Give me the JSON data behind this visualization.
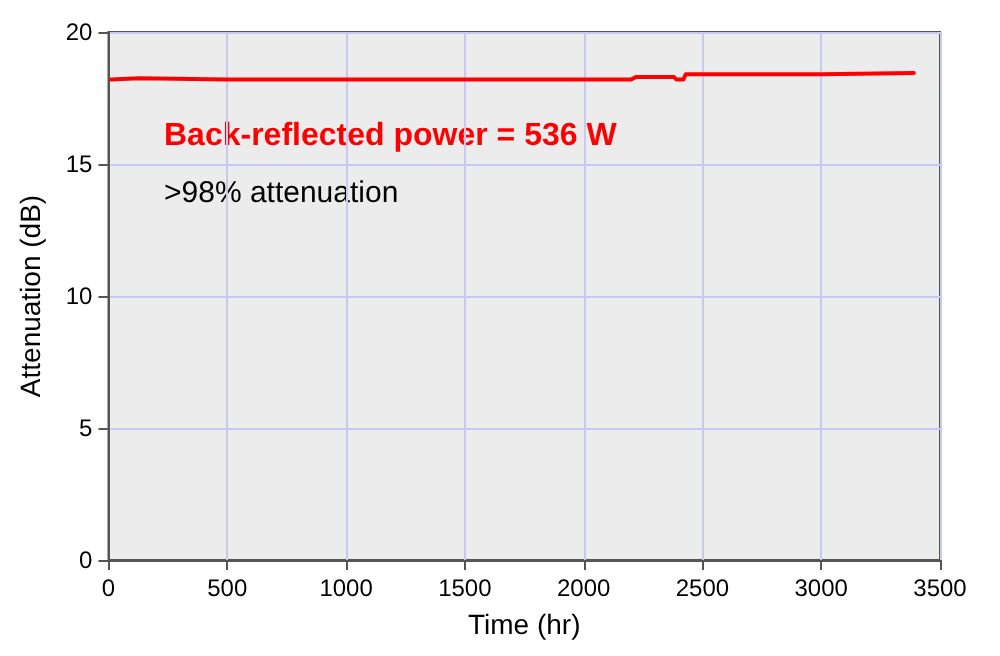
{
  "chart_data": {
    "type": "line",
    "xlabel": "Time (hr)",
    "ylabel": "Attenuation (dB)",
    "annotations": [
      "Back-reflected power = 536 W",
      ">98% attenuation"
    ],
    "series": [
      {
        "color": "#ff0000",
        "x": [
          10,
          130,
          500,
          1000,
          1500,
          2000,
          2200,
          2220,
          2380,
          2390,
          2420,
          2430,
          3000,
          3390
        ],
        "values": [
          18.2,
          18.25,
          18.2,
          18.2,
          18.2,
          18.2,
          18.2,
          18.3,
          18.3,
          18.2,
          18.2,
          18.4,
          18.4,
          18.45
        ]
      }
    ],
    "xlim": [
      0,
      3500
    ],
    "xticks": [
      0,
      500,
      1000,
      1500,
      2000,
      2500,
      3000,
      3500
    ],
    "ylim": [
      0,
      20
    ],
    "yticks": [
      0,
      5,
      10,
      15,
      20
    ],
    "grid": true,
    "marker": "none",
    "line_style": "solid"
  }
}
